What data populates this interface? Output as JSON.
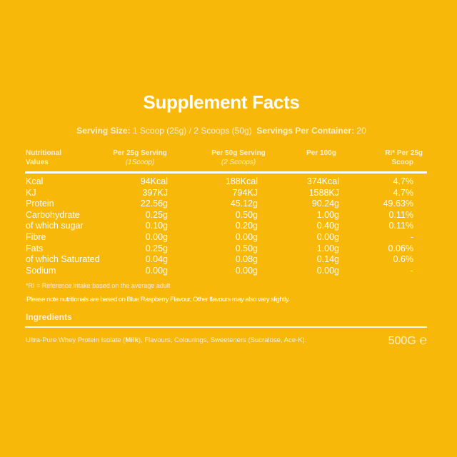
{
  "title": "Supplement Facts",
  "serving": {
    "size_label": "Serving Size:",
    "size_value": "1 Scoop (25g) / 2 Scoops (50g)",
    "per_container_label": "Servings Per Container:",
    "per_container_value": "20"
  },
  "table": {
    "headers": [
      {
        "line1": "Nutritional",
        "line2": "Values"
      },
      {
        "line1": "Per 25g Serving",
        "line2": "(1Scoop)"
      },
      {
        "line1": "Per 50g Serving",
        "line2": "(2 Scoops)"
      },
      {
        "line1": "Per 100g",
        "line2": ""
      },
      {
        "line1": "RI* Per 25g",
        "line2": "Scoop"
      }
    ],
    "rows": [
      [
        "Kcal",
        "94Kcal",
        "188Kcal",
        "374Kcal",
        "4.7%"
      ],
      [
        "KJ",
        "397KJ",
        "794KJ",
        "1588KJ",
        "4.7%"
      ],
      [
        "Protein",
        "22.56g",
        "45.12g",
        "90.24g",
        "49.63%"
      ],
      [
        "Carbohydrate",
        "0.25g",
        "0.50g",
        "1.00g",
        "0.11%"
      ],
      [
        "of which sugar",
        "0.10g",
        "0.20g",
        "0.40g",
        "0.11%"
      ],
      [
        "Fibre",
        "0.00g",
        "0.00g",
        "0.00g",
        "-"
      ],
      [
        "Fats",
        "0.25g",
        "0.50g",
        "1.00g",
        "0.06%"
      ],
      [
        "of which Saturated",
        "0.04g",
        "0.08g",
        "0.14g",
        "0.6%"
      ],
      [
        "Sodium",
        "0.00g",
        "0.00g",
        "0.00g",
        "-"
      ]
    ]
  },
  "footnote": "*RI = Reference intake based on the average adult",
  "note": "Please note nutritionals are based on Blue Raspberry Flavour, Other flavours may also vary slightly.",
  "ingredients": {
    "heading": "Ingredients",
    "text_before": "Ultra-Pure Whey Protein Isolate (",
    "allergen": "Milk",
    "text_after": "), Flavours, Colourings, Sweeteners (Sucralose, Ace-K)."
  },
  "net_weight": "500G",
  "estimated_sign": "℮",
  "colors": {
    "background": "#F8B80A",
    "text": "#FFFFFF"
  }
}
